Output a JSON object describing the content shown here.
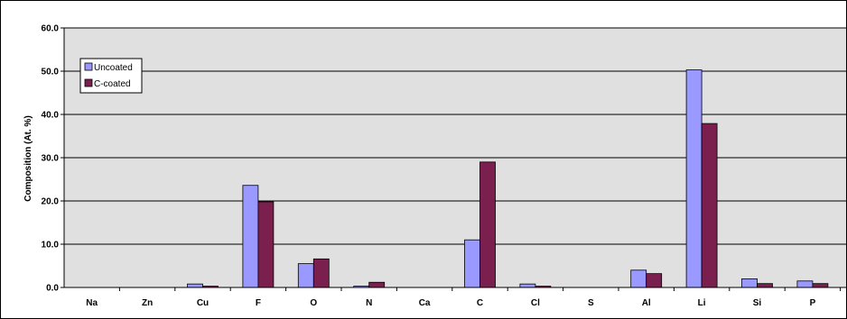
{
  "chart_data": {
    "type": "bar",
    "title": "",
    "xlabel": "",
    "ylabel": "Composition (At. %)",
    "ylim": [
      0,
      60
    ],
    "y_ticks": [
      "0.0",
      "10.0",
      "20.0",
      "30.0",
      "40.0",
      "50.0",
      "60.0"
    ],
    "grid": true,
    "legend_position": "top-left",
    "categories": [
      "Na",
      "Zn",
      "Cu",
      "F",
      "O",
      "N",
      "Ca",
      "C",
      "Cl",
      "S",
      "Al",
      "Li",
      "Si",
      "P"
    ],
    "series": [
      {
        "name": "Uncoated",
        "color": "#9999FF",
        "values": [
          0.0,
          0.0,
          0.8,
          23.6,
          5.5,
          0.3,
          0.0,
          11.0,
          0.8,
          0.0,
          4.0,
          50.3,
          2.0,
          1.5
        ]
      },
      {
        "name": "C-coated",
        "color": "#7B1F4F",
        "values": [
          0.0,
          0.0,
          0.3,
          19.8,
          6.6,
          1.2,
          0.0,
          29.0,
          0.3,
          0.0,
          3.2,
          37.9,
          0.9,
          0.9
        ]
      }
    ],
    "plot_background": "#E0E0E0"
  }
}
